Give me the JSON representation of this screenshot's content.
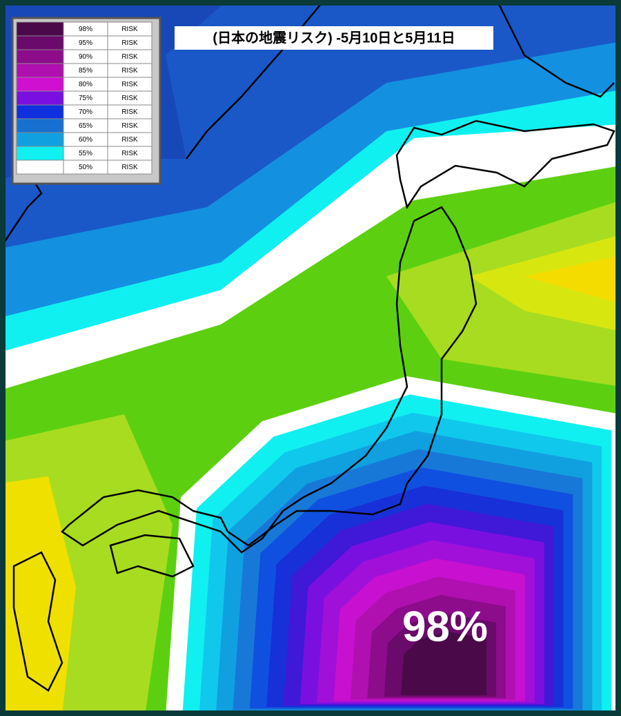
{
  "title": "(日本の地震リスク) -5月10日と5月11日",
  "legend": [
    {
      "percent": "98%",
      "risk": "RISK",
      "color": "#4a0a4a"
    },
    {
      "percent": "95%",
      "risk": "RISK",
      "color": "#6a0a6a"
    },
    {
      "percent": "90%",
      "risk": "RISK",
      "color": "#8c0c8c"
    },
    {
      "percent": "85%",
      "risk": "RISK",
      "color": "#b010b0"
    },
    {
      "percent": "80%",
      "risk": "RISK",
      "color": "#d010d0"
    },
    {
      "percent": "75%",
      "risk": "RISK",
      "color": "#7a10e0"
    },
    {
      "percent": "70%",
      "risk": "RISK",
      "color": "#1030e0"
    },
    {
      "percent": "65%",
      "risk": "RISK",
      "color": "#1870d0"
    },
    {
      "percent": "60%",
      "risk": "RISK",
      "color": "#10a0e0"
    },
    {
      "percent": "55%",
      "risk": "RISK",
      "color": "#10f0f0"
    },
    {
      "percent": "50%",
      "risk": "RISK",
      "color": "#ffffff"
    }
  ],
  "peak_label": "98%"
}
